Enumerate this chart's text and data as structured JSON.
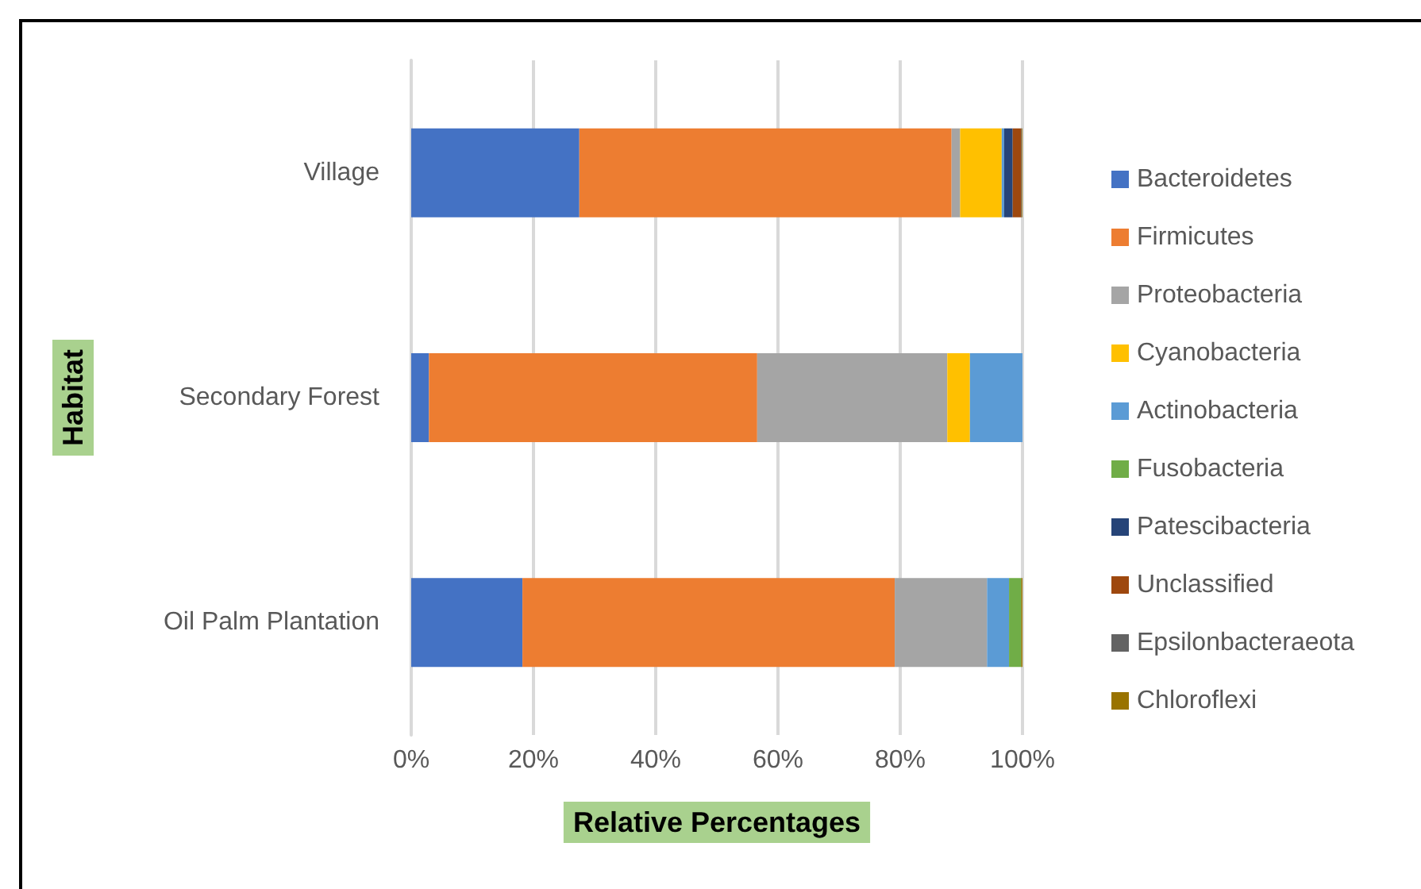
{
  "chart_data": {
    "type": "bar",
    "orientation": "horizontal",
    "stacked": true,
    "xlabel": "Relative Percentages",
    "ylabel": "Habitat",
    "categories": [
      "Village",
      "Secondary Forest",
      "Oil Palm Plantation"
    ],
    "series": [
      {
        "name": "Bacteroidetes",
        "color": "#4472c4",
        "values": [
          27.5,
          2.9,
          18.2
        ]
      },
      {
        "name": "Firmicutes",
        "color": "#ed7d31",
        "values": [
          60.9,
          53.7,
          60.9
        ]
      },
      {
        "name": "Proteobacteria",
        "color": "#a5a5a5",
        "values": [
          1.4,
          31.1,
          15.1
        ]
      },
      {
        "name": "Cyanobacteria",
        "color": "#ffc000",
        "values": [
          6.8,
          3.7,
          0
        ]
      },
      {
        "name": "Actinobacteria",
        "color": "#5b9bd5",
        "values": [
          0.4,
          8.6,
          3.6
        ]
      },
      {
        "name": "Fusobacteria",
        "color": "#70ad47",
        "values": [
          0,
          0,
          2.0
        ]
      },
      {
        "name": "Patescibacteria",
        "color": "#264478",
        "values": [
          1.4,
          0,
          0
        ]
      },
      {
        "name": "Unclassified",
        "color": "#9e480e",
        "values": [
          1.4,
          0,
          0
        ]
      },
      {
        "name": "Epsilonbacteraeota",
        "color": "#636363",
        "values": [
          0.1,
          0,
          0
        ]
      },
      {
        "name": "Chloroflexi",
        "color": "#997300",
        "values": [
          0.1,
          0,
          0.2
        ]
      }
    ],
    "xlim": [
      0,
      100
    ],
    "xticks": [
      {
        "value": 0,
        "label": "0%"
      },
      {
        "value": 20,
        "label": "20%"
      },
      {
        "value": 40,
        "label": "40%"
      },
      {
        "value": 60,
        "label": "60%"
      },
      {
        "value": 80,
        "label": "80%"
      },
      {
        "value": 100,
        "label": "100%"
      }
    ],
    "grid": "x",
    "legend": "right"
  }
}
